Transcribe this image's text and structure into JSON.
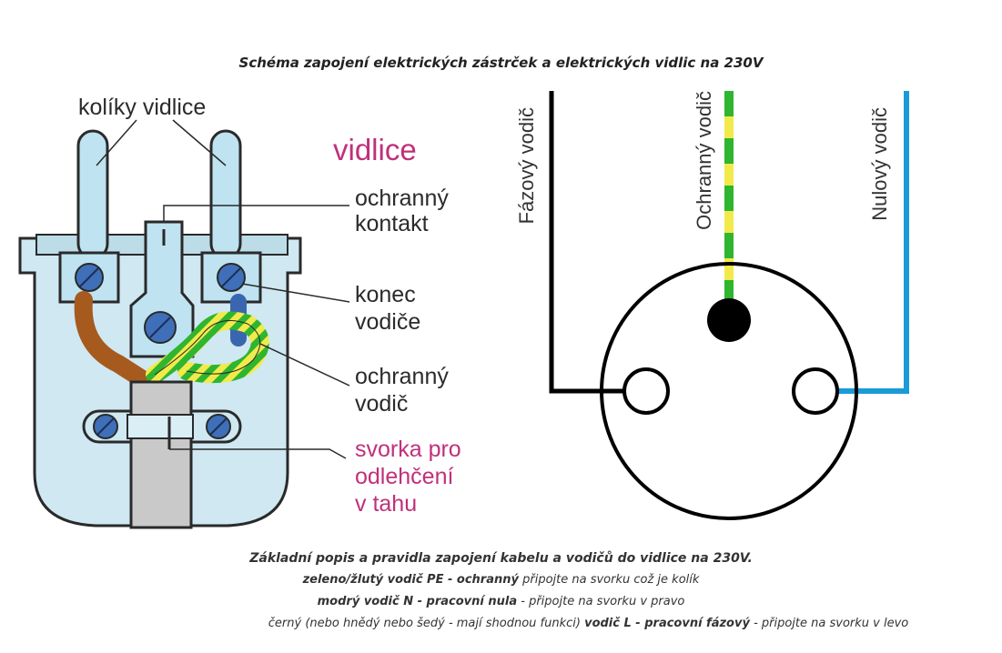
{
  "title": "Schéma zapojení elektrických zástrček a elektrických vidlic na 230V",
  "plug": {
    "pins_label": "kolíky vidlice",
    "heading": "vidlice",
    "protective_contact": [
      "ochranný",
      "kontakt"
    ],
    "wire_end": [
      "konec",
      "vodiče"
    ],
    "protective_wire": [
      "ochranný",
      "vodič"
    ],
    "strain_relief": [
      "svorka pro",
      "odlehčení",
      "v tahu"
    ]
  },
  "socket": {
    "phase_label": "Fázový vodič",
    "protective_label": "Ochranný vodič",
    "neutral_label": "Nulový vodič",
    "colors": {
      "phase": "#000000",
      "protective_green": "#2fb52f",
      "protective_yellow": "#f2ea4a",
      "neutral": "#1a9ad6"
    }
  },
  "description": {
    "heading": "Základní popis a pravidla zapojení kabelu a vodičů do vidlice na 230V.",
    "pe_bold": "zeleno/žlutý vodič PE - ochranný",
    "pe_rest": " připojte na svorku což je kolík",
    "n_bold": "modrý vodič N - pracovní nula",
    "n_rest": " - připojte na svorku v pravo",
    "l_prefix": "černý (nebo hnědý nebo šedý - mají shodnou funkci) ",
    "l_bold": "vodič L - pracovní fázový",
    "l_rest": " - připojte na svorku v levo"
  }
}
